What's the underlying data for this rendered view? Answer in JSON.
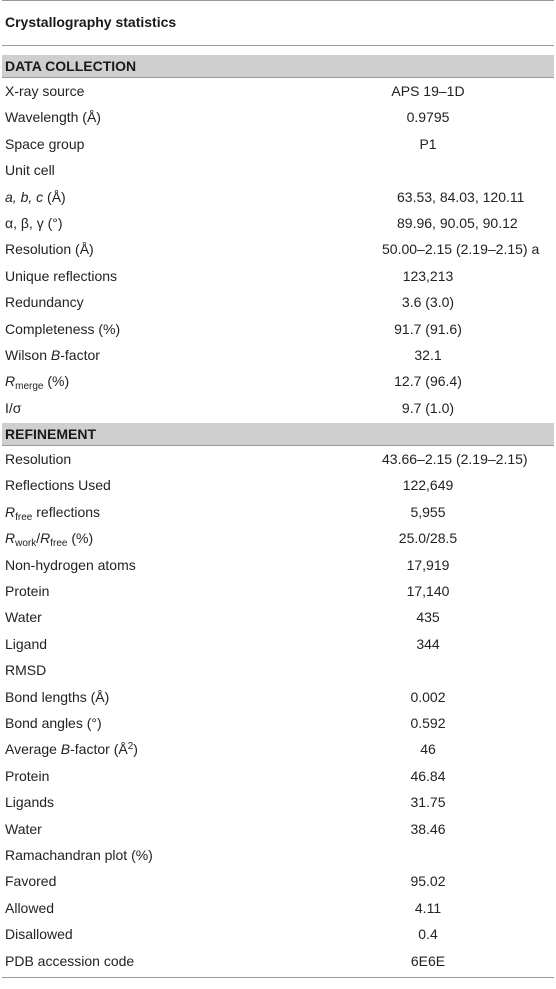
{
  "table": {
    "title": "Crystallography statistics",
    "data_collection": {
      "heading": "DATA COLLECTION",
      "rows": [
        {
          "label": "X-ray source",
          "value": "APS 19–1D"
        },
        {
          "label": "Wavelength (Å)",
          "value": "0.9795"
        },
        {
          "label": "Space group",
          "value": "P1"
        },
        {
          "label": "Unit cell",
          "value": ""
        },
        {
          "label_italic": "a, b, c",
          "label_rest": " (Å)",
          "value": "63.53, 84.03, 120.11"
        },
        {
          "label": "α, β, γ (°)",
          "value": "89.96, 90.05, 90.12"
        },
        {
          "label": "Resolution (Å)",
          "value": "50.00–2.15 (2.19–2.15) a"
        },
        {
          "label": "Unique reflections",
          "value": "123,213"
        },
        {
          "label": "Redundancy",
          "value": "3.6 (3.0)"
        },
        {
          "label": "Completeness (%)",
          "value": "91.7 (91.6)"
        },
        {
          "label_pre": "Wilson ",
          "label_italic": "B",
          "label_rest": "-factor",
          "value": "32.1"
        },
        {
          "label_italic": "R",
          "label_sub": "merge",
          "label_rest": " (%)",
          "value": "12.7 (96.4)"
        },
        {
          "label": "I/σ",
          "value": "9.7 (1.0)"
        }
      ]
    },
    "refinement": {
      "heading": "REFINEMENT",
      "rows": [
        {
          "label": "Resolution",
          "value": "43.66–2.15 (2.19–2.15)"
        },
        {
          "label": "Reflections Used",
          "value": "122,649"
        },
        {
          "label_italic": "R",
          "label_sub": "free",
          "label_rest": " reflections",
          "value": "5,955"
        },
        {
          "label_italic": "R",
          "label_sub": "work",
          "label_mid": "/",
          "label_italic2": "R",
          "label_sub2": "free",
          "label_rest": " (%)",
          "value": "25.0/28.5"
        },
        {
          "label": "Non-hydrogen atoms",
          "value": "17,919"
        },
        {
          "label": "Protein",
          "value": "17,140"
        },
        {
          "label": "Water",
          "value": "435"
        },
        {
          "label": "Ligand",
          "value": "344"
        },
        {
          "label": "RMSD",
          "value": ""
        },
        {
          "label": "Bond lengths (Å)",
          "value": "0.002"
        },
        {
          "label": "Bond angles (°)",
          "value": "0.592"
        },
        {
          "label_pre": "Average ",
          "label_italic": "B",
          "label_rest": "-factor (Å",
          "label_sup": "2",
          "label_end": ")",
          "value": "46"
        },
        {
          "label": "Protein",
          "value": "46.84"
        },
        {
          "label": "Ligands",
          "value": "31.75"
        },
        {
          "label": "Water",
          "value": "38.46"
        },
        {
          "label": "Ramachandran plot (%)",
          "value": ""
        },
        {
          "label": "Favored",
          "value": "95.02"
        },
        {
          "label": "Allowed",
          "value": "4.11"
        },
        {
          "label": "Disallowed",
          "value": "0.4"
        },
        {
          "label": "PDB accession code",
          "value": "6E6E"
        }
      ]
    }
  }
}
